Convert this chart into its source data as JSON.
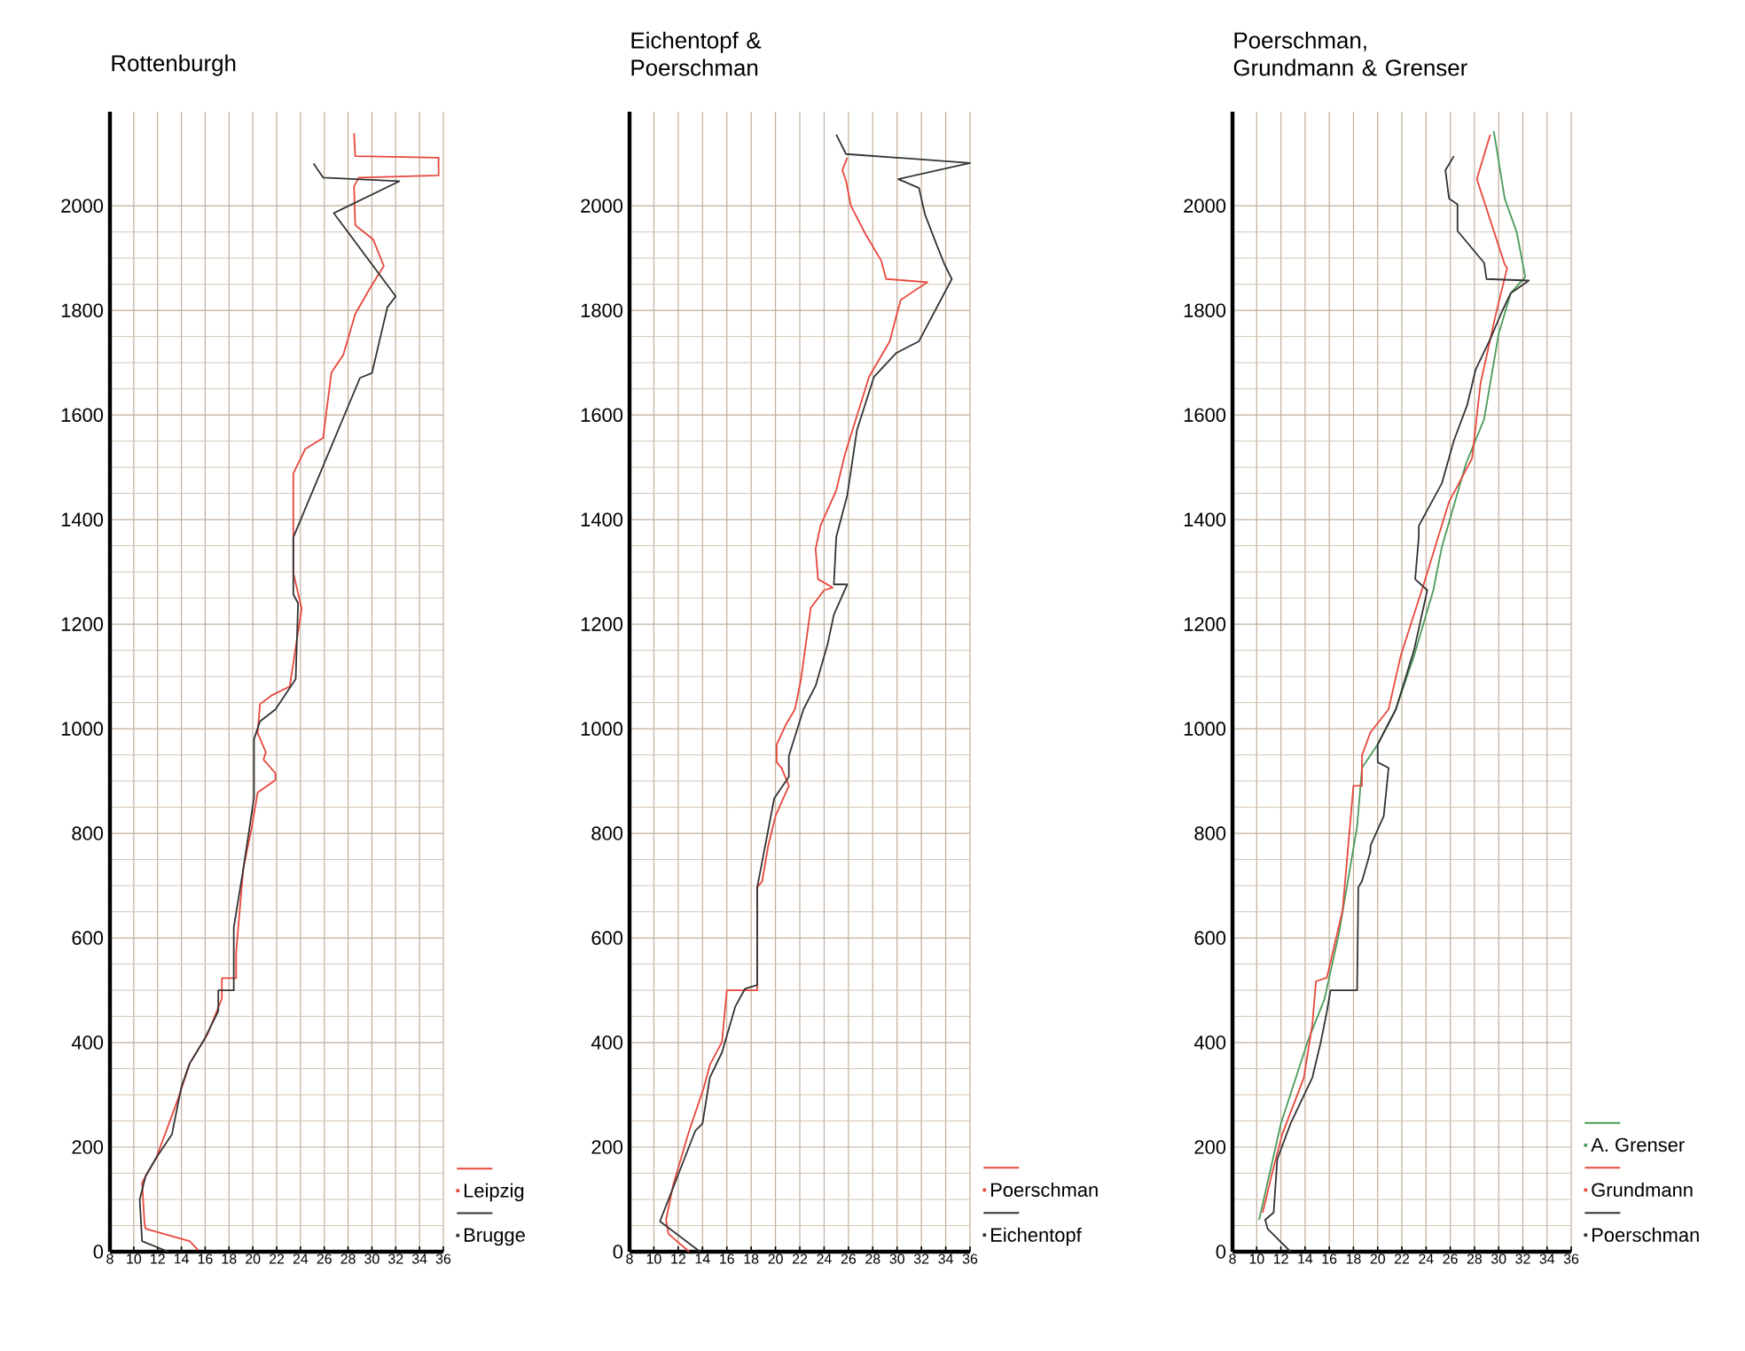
{
  "chart_data": [
    {
      "type": "line",
      "title": "Rottenburgh",
      "xlim": [
        8,
        36
      ],
      "xticks": [
        8,
        10,
        12,
        14,
        16,
        18,
        20,
        22,
        24,
        26,
        28,
        30,
        32,
        34,
        36
      ],
      "ylim": [
        0,
        2180
      ],
      "yticks": [
        0,
        200,
        400,
        600,
        800,
        1000,
        1200,
        1400,
        1600,
        1800,
        2000
      ],
      "grid": true,
      "legend": "bottom right",
      "series": [
        {
          "name": "Leipzig",
          "color": "#e8473c",
          "x": [
            15.4,
            14.7,
            11,
            10.9,
            10.7,
            11.9,
            13.7,
            14.7,
            16.2,
            17.4,
            17.4,
            18.6,
            18.6,
            19.2,
            19.9,
            20.4,
            21.9,
            21.9,
            20.9,
            21.1,
            20.4,
            20.6,
            21.6,
            23.1,
            24.1,
            23.4,
            23.4,
            24.4,
            25.9,
            26.6,
            27.6,
            28.6,
            29.8,
            31,
            30.1,
            28.6,
            28.5,
            28.9,
            35.6,
            35.6,
            28.6,
            28.5
          ],
          "values": [
            3,
            20,
            44,
            55,
            132,
            180,
            291,
            360,
            416,
            484,
            523,
            523,
            573,
            732,
            811,
            878,
            902,
            915,
            941,
            955,
            992,
            1047,
            1064,
            1081,
            1230,
            1298,
            1488,
            1535,
            1556,
            1681,
            1715,
            1793,
            1841,
            1885,
            1936,
            1963,
            2037,
            2054,
            2058,
            2092,
            2095,
            2139
          ]
        },
        {
          "name": "Brugge",
          "color": "#333333",
          "x": [
            12.9,
            10.7,
            10.5,
            11,
            11.9,
            13.2,
            14,
            14.7,
            15.9,
            17.1,
            17.1,
            18.4,
            18.4,
            19.2,
            20.1,
            20.1,
            20.6,
            21.9,
            23.6,
            23.8,
            23.4,
            23.4,
            29,
            30,
            31.3,
            32,
            26.8,
            32.3,
            25.9,
            25.1
          ],
          "values": [
            0,
            20,
            100,
            145,
            180,
            224,
            315,
            360,
            405,
            460,
            500,
            500,
            620,
            732,
            868,
            980,
            1014,
            1037,
            1095,
            1240,
            1257,
            1366,
            1671,
            1680,
            1806,
            1827,
            1986,
            2047,
            2054,
            2081
          ]
        }
      ]
    },
    {
      "type": "line",
      "title": "Eichentopf & Poerschman",
      "xlim": [
        8,
        36
      ],
      "xticks": [
        8,
        10,
        12,
        14,
        16,
        18,
        20,
        22,
        24,
        26,
        28,
        30,
        32,
        34,
        36
      ],
      "ylim": [
        0,
        2180
      ],
      "yticks": [
        0,
        200,
        400,
        600,
        800,
        1000,
        1200,
        1400,
        1600,
        1800,
        2000
      ],
      "grid": true,
      "legend": "bottom right",
      "series": [
        {
          "name": "Poerschman",
          "color": "#e8473c",
          "x": [
            12.9,
            11.2,
            11,
            11.6,
            12.9,
            14.1,
            14.6,
            15.6,
            16,
            18.5,
            18.5,
            18.9,
            19.4,
            20,
            21.1,
            20.5,
            20.1,
            20.1,
            20.9,
            21.6,
            22.1,
            22.9,
            24,
            24.7,
            23.5,
            23.3,
            23.7,
            25,
            25.7,
            27.7,
            29.4,
            29.9,
            30.3,
            32.5,
            29.1,
            28.7,
            27.4,
            26.2,
            25.8,
            25.5,
            25.9
          ],
          "values": [
            0,
            34,
            61,
            129,
            231,
            313,
            357,
            401,
            500,
            500,
            697,
            708,
            776,
            833,
            891,
            925,
            936,
            970,
            1010,
            1037,
            1095,
            1231,
            1265,
            1270,
            1286,
            1344,
            1388,
            1456,
            1524,
            1673,
            1741,
            1786,
            1820,
            1854,
            1860,
            1895,
            1946,
            2000,
            2048,
            2068,
            2092
          ]
        },
        {
          "name": "Eichentopf",
          "color": "#333333",
          "x": [
            13.8,
            10.5,
            13.4,
            14,
            14.6,
            15.6,
            16.7,
            17.5,
            18.5,
            18.5,
            19.9,
            21.1,
            21.1,
            22.3,
            23.3,
            24.3,
            24.8,
            25.9,
            24.8,
            25,
            25.9,
            26.7,
            28.1,
            29.9,
            31.8,
            34.5,
            33.9,
            33.2,
            32.3,
            31.8,
            30.1,
            36,
            25.8,
            25
          ],
          "values": [
            0,
            58,
            231,
            245,
            333,
            381,
            469,
            503,
            510,
            697,
            867,
            908,
            948,
            1037,
            1082,
            1163,
            1218,
            1276,
            1276,
            1367,
            1446,
            1571,
            1673,
            1718,
            1741,
            1860,
            1888,
            1929,
            1983,
            2034,
            2051,
            2082,
            2099,
            2136
          ]
        }
      ]
    },
    {
      "type": "line",
      "title": "Poerschman, Grundmann & Grenser",
      "xlim": [
        8,
        36
      ],
      "xticks": [
        8,
        10,
        12,
        14,
        16,
        18,
        20,
        22,
        24,
        26,
        28,
        30,
        32,
        34,
        36
      ],
      "ylim": [
        0,
        2180
      ],
      "yticks": [
        0,
        200,
        400,
        600,
        800,
        1000,
        1200,
        1400,
        1600,
        1800,
        2000
      ],
      "grid": true,
      "legend": "bottom right",
      "series": [
        {
          "name": "A. Grenser",
          "color": "#4a9a5a",
          "x": [
            10.2,
            12,
            14.2,
            15.6,
            16.8,
            18.3,
            18.7,
            20,
            21.5,
            23,
            24.6,
            25.3,
            27.3,
            28.8,
            30,
            31,
            32.2,
            31.5,
            30.5,
            29.6
          ],
          "values": [
            61,
            245,
            401,
            483,
            609,
            813,
            925,
            970,
            1037,
            1139,
            1265,
            1347,
            1507,
            1592,
            1755,
            1833,
            1864,
            1949,
            2014,
            2143
          ]
        },
        {
          "name": "Grundmann",
          "color": "#e8473c",
          "x": [
            10.5,
            11.2,
            12.1,
            13.9,
            14.6,
            14.9,
            15.8,
            17.1,
            18,
            18.7,
            18.7,
            19.4,
            20.9,
            21.9,
            23.8,
            25.9,
            27.8,
            28.5,
            29.7,
            30.7,
            30.5,
            28.2,
            29.3
          ],
          "values": [
            75,
            143,
            224,
            333,
            435,
            517,
            524,
            653,
            891,
            891,
            949,
            993,
            1037,
            1139,
            1276,
            1434,
            1517,
            1660,
            1786,
            1881,
            1888,
            2051,
            2136
          ]
        },
        {
          "name": "Poerschman",
          "color": "#333333",
          "x": [
            12.8,
            10.9,
            10.7,
            11.4,
            11.7,
            12.8,
            14.6,
            15.3,
            15.8,
            16.1,
            18.3,
            18.4,
            18.7,
            19.4,
            19.4,
            20.5,
            20.9,
            20,
            20,
            21.5,
            23,
            24.1,
            23.1,
            23.4,
            23.4,
            25.3,
            26.3,
            27.4,
            28.1,
            29.3,
            30.3,
            31,
            32.5,
            29,
            28.8,
            26.6,
            26.6,
            25.9,
            25.6,
            26.3
          ],
          "values": [
            0,
            44,
            61,
            75,
            177,
            245,
            333,
            401,
            459,
            500,
            500,
            697,
            708,
            765,
            776,
            833,
            925,
            936,
            970,
            1037,
            1150,
            1265,
            1286,
            1367,
            1388,
            1469,
            1551,
            1619,
            1687,
            1745,
            1799,
            1833,
            1857,
            1860,
            1891,
            1952,
            2003,
            2014,
            2068,
            2095
          ]
        }
      ]
    }
  ]
}
